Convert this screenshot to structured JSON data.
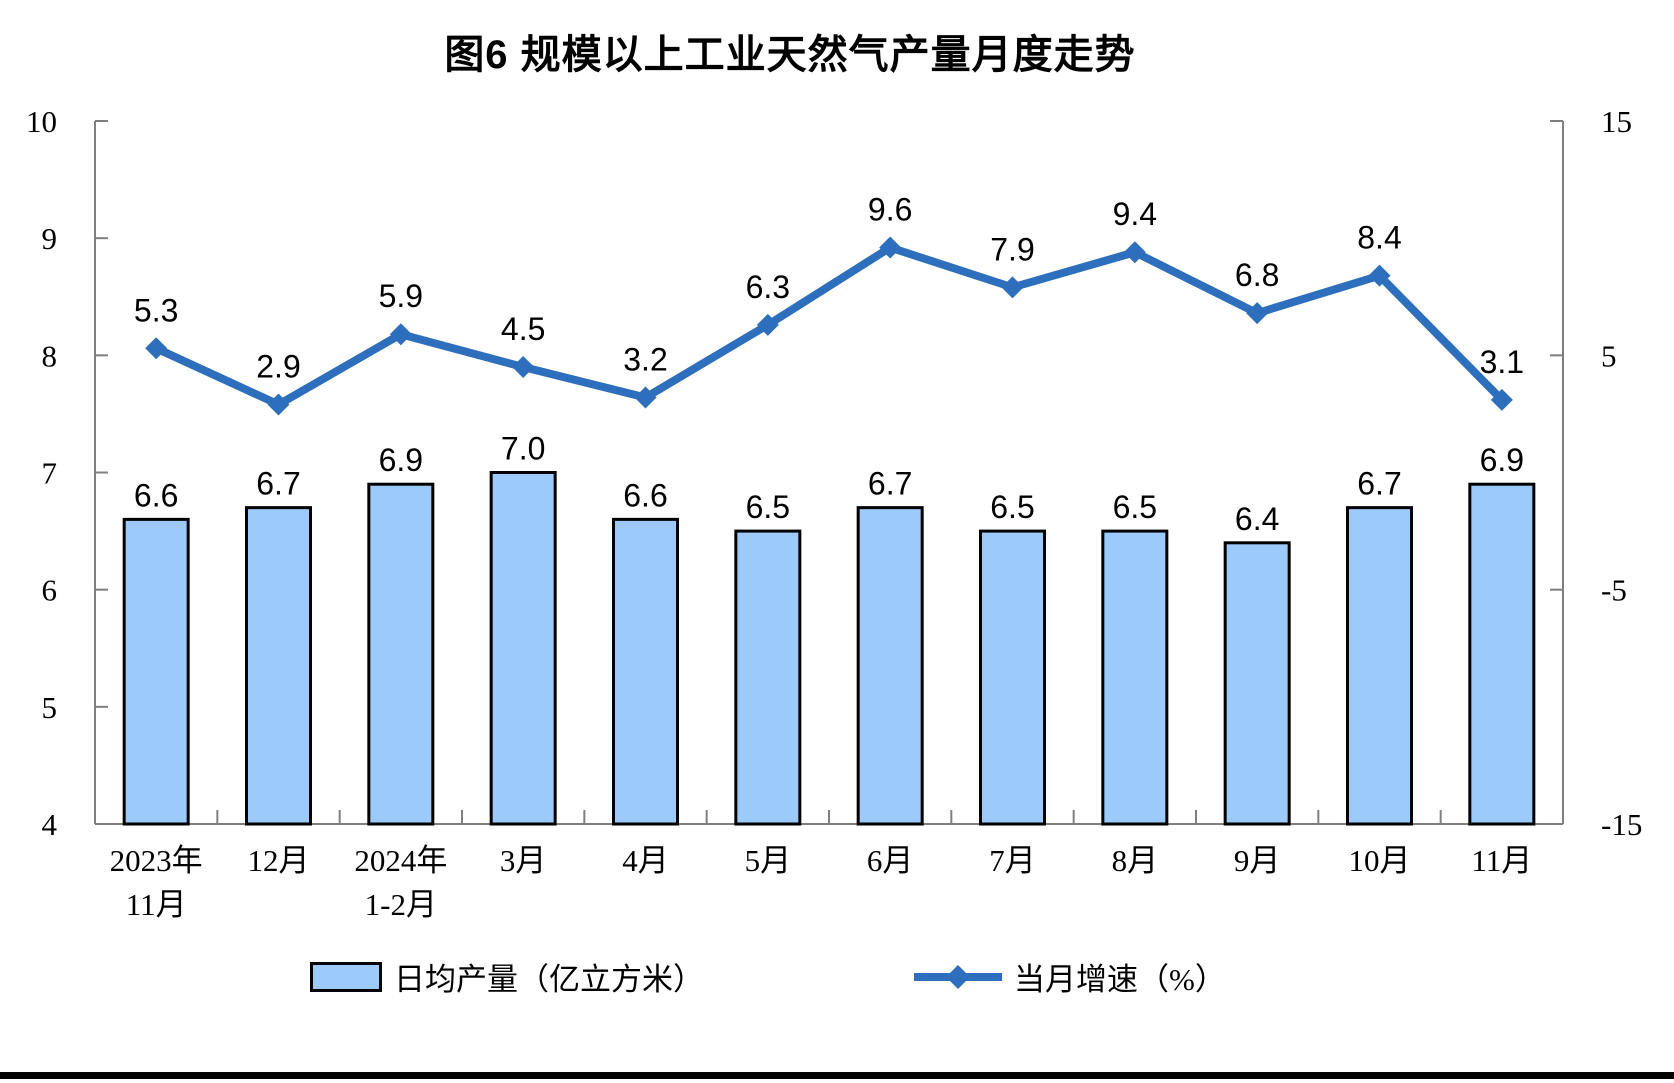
{
  "chart_data": {
    "type": "combo-bar-line",
    "title": "图6 规模以上工业天然气产量月度走势",
    "categories": [
      "2023年\n11月",
      "12月",
      "2024年\n1-2月",
      "3月",
      "4月",
      "5月",
      "6月",
      "7月",
      "8月",
      "9月",
      "10月",
      "11月"
    ],
    "series": [
      {
        "type": "bar",
        "name": "日均产量（亿立方米）",
        "axis": "left",
        "values": [
          6.6,
          6.7,
          6.9,
          7.0,
          6.6,
          6.5,
          6.7,
          6.5,
          6.5,
          6.4,
          6.7,
          6.9
        ],
        "fill": "#9CCAFB",
        "stroke": "#000000",
        "data_labels": true
      },
      {
        "type": "line",
        "name": "当月增速（%）",
        "axis": "right",
        "values": [
          5.3,
          2.9,
          5.9,
          4.5,
          3.2,
          6.3,
          9.6,
          7.9,
          9.4,
          6.8,
          8.4,
          3.1
        ],
        "color": "#2E6FBD",
        "marker": "diamond",
        "data_labels": true
      }
    ],
    "axes": {
      "left": {
        "min": 4,
        "max": 10,
        "ticks": [
          10,
          9,
          8,
          7,
          6,
          5,
          4
        ]
      },
      "right": {
        "min": -15,
        "max": 15,
        "ticks": [
          15,
          5,
          -5,
          -15
        ]
      }
    },
    "grid": false,
    "legend_position": "bottom",
    "colors": {
      "axis": "#7F7F7F",
      "text": "#000000",
      "background": "#FFFFFF"
    }
  }
}
